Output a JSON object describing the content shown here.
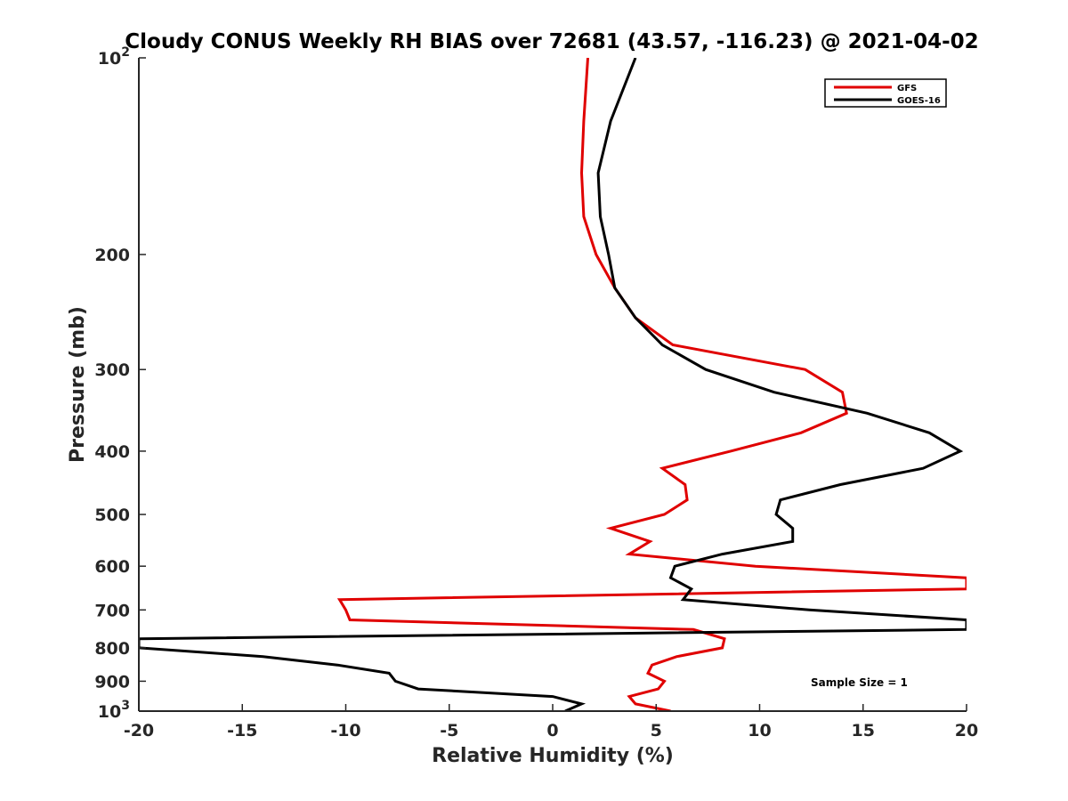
{
  "chart_data": {
    "type": "line",
    "title": "Cloudy CONUS Weekly RH BIAS over 72681 (43.57, -116.23) @ 2021-04-02",
    "xlabel": "Relative Humidity (%)",
    "ylabel": "Pressure (mb)",
    "xlim": [
      -20,
      20
    ],
    "ylim": [
      100,
      1000
    ],
    "y_scale": "log",
    "y_reversed": true,
    "grid": false,
    "legend_position": "top-right",
    "x_ticks": [
      -20,
      -15,
      -10,
      -5,
      0,
      5,
      10,
      15,
      20
    ],
    "y_ticks": [
      100,
      200,
      300,
      400,
      500,
      600,
      700,
      800,
      900,
      1000
    ],
    "x_tick_labels": [
      "-20",
      "-15",
      "-10",
      "-5",
      "0",
      "5",
      "10",
      "15",
      "20"
    ],
    "y_tick_labels": [
      {
        "base": "10",
        "exp": "2"
      },
      {
        "base": "200",
        "exp": ""
      },
      {
        "base": "300",
        "exp": ""
      },
      {
        "base": "400",
        "exp": ""
      },
      {
        "base": "500",
        "exp": ""
      },
      {
        "base": "600",
        "exp": ""
      },
      {
        "base": "700",
        "exp": ""
      },
      {
        "base": "800",
        "exp": ""
      },
      {
        "base": "900",
        "exp": ""
      },
      {
        "base": "10",
        "exp": "3"
      }
    ],
    "annotation": "Sample Size = 1",
    "series": [
      {
        "name": "GFS",
        "color": "#e00000",
        "points": [
          [
            1.7,
            100
          ],
          [
            1.5,
            125
          ],
          [
            1.4,
            150
          ],
          [
            1.5,
            175
          ],
          [
            2.1,
            200
          ],
          [
            3.0,
            225
          ],
          [
            4.0,
            250
          ],
          [
            5.8,
            275
          ],
          [
            12.2,
            300
          ],
          [
            14.0,
            325
          ],
          [
            14.2,
            350
          ],
          [
            12.0,
            375
          ],
          [
            8.6,
            400
          ],
          [
            5.3,
            425
          ],
          [
            6.4,
            450
          ],
          [
            6.5,
            475
          ],
          [
            5.4,
            500
          ],
          [
            2.8,
            525
          ],
          [
            4.7,
            550
          ],
          [
            3.7,
            575
          ],
          [
            9.8,
            600
          ],
          [
            20.0,
            625
          ],
          [
            20.0,
            650
          ],
          [
            -10.3,
            675
          ],
          [
            -10.0,
            700
          ],
          [
            -9.8,
            725
          ],
          [
            6.8,
            750
          ],
          [
            8.3,
            775
          ],
          [
            8.2,
            800
          ],
          [
            6.0,
            825
          ],
          [
            4.8,
            850
          ],
          [
            4.6,
            875
          ],
          [
            5.4,
            900
          ],
          [
            5.1,
            925
          ],
          [
            3.7,
            950
          ],
          [
            4.0,
            975
          ],
          [
            5.7,
            1000
          ]
        ]
      },
      {
        "name": "GOES-16",
        "color": "#000000",
        "points": [
          [
            4.0,
            100
          ],
          [
            2.8,
            125
          ],
          [
            2.2,
            150
          ],
          [
            2.3,
            175
          ],
          [
            2.7,
            200
          ],
          [
            3.0,
            225
          ],
          [
            4.0,
            250
          ],
          [
            5.3,
            275
          ],
          [
            7.4,
            300
          ],
          [
            10.7,
            325
          ],
          [
            15.2,
            350
          ],
          [
            18.2,
            375
          ],
          [
            19.7,
            400
          ],
          [
            17.9,
            425
          ],
          [
            13.9,
            450
          ],
          [
            11.0,
            475
          ],
          [
            10.8,
            500
          ],
          [
            11.6,
            525
          ],
          [
            11.6,
            550
          ],
          [
            8.2,
            575
          ],
          [
            5.9,
            600
          ],
          [
            5.7,
            625
          ],
          [
            6.7,
            650
          ],
          [
            6.3,
            675
          ],
          [
            12.4,
            700
          ],
          [
            20.0,
            725
          ],
          [
            20.0,
            750
          ],
          [
            -20.0,
            775
          ],
          [
            -20.0,
            800
          ],
          [
            -14.0,
            825
          ],
          [
            -10.4,
            850
          ],
          [
            -7.9,
            875
          ],
          [
            -7.6,
            900
          ],
          [
            -6.5,
            925
          ],
          [
            0.0,
            950
          ],
          [
            1.4,
            975
          ],
          [
            0.6,
            1000
          ]
        ]
      }
    ]
  }
}
